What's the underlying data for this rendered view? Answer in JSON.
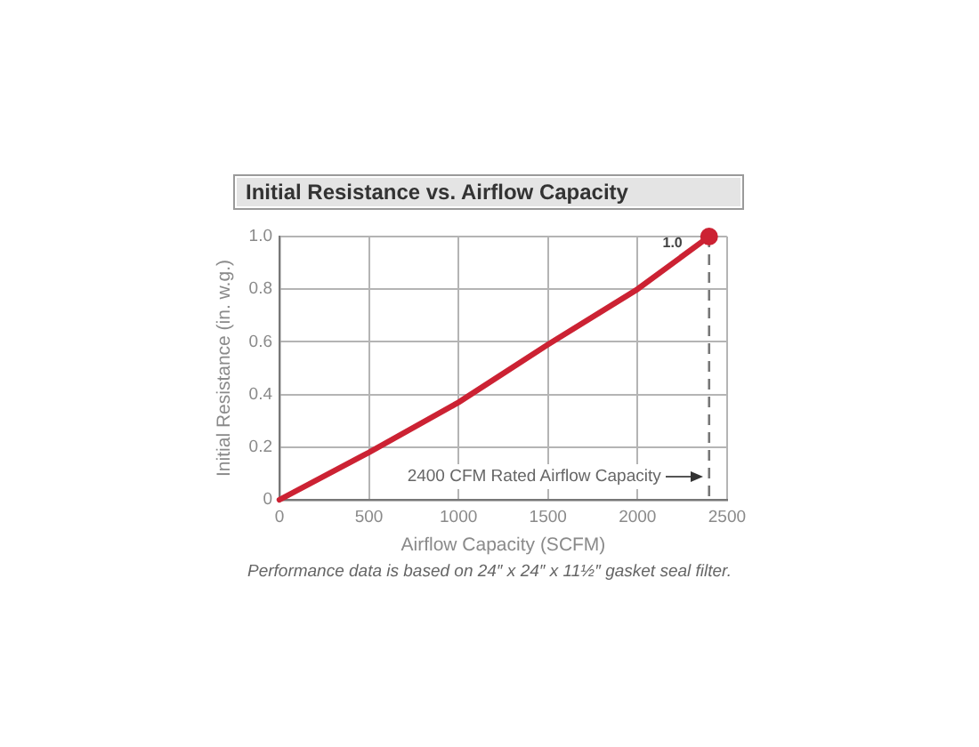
{
  "chart_data": {
    "type": "line",
    "title": "Initial Resistance vs. Airflow Capacity",
    "xlabel": "Airflow Capacity (SCFM)",
    "ylabel": "Initial Resistance (in. w.g.)",
    "series": [
      {
        "type": "line",
        "color": "#cc2233",
        "x": [
          0,
          500,
          1000,
          1500,
          2000,
          2400
        ],
        "values": [
          0,
          0.18,
          0.37,
          0.59,
          0.8,
          1.0
        ]
      },
      {
        "type": "scatter",
        "color": "#cc2233",
        "marker": "circle",
        "x": [
          2400
        ],
        "values": [
          1.0
        ],
        "value_labels": [
          "1.0"
        ]
      }
    ],
    "xlim": [
      0,
      2500
    ],
    "xticks": [
      0,
      500,
      1000,
      1500,
      2000,
      2500
    ],
    "ylim": [
      0,
      1.0
    ],
    "yticks": [
      0,
      {
        "value": 0.2,
        "label": "0.2"
      },
      {
        "value": 0.4,
        "label": "0.4"
      },
      {
        "value": 0.6,
        "label": "0.6"
      },
      {
        "value": 0.8,
        "label": "0.8"
      },
      {
        "value": 1.0,
        "label": "1.0"
      }
    ],
    "grid": true,
    "marker": "none",
    "ref_lines": [
      {
        "axis": "x",
        "value": 2400,
        "label": "2400 CFM Rated Airflow Capacity",
        "color": "#777777",
        "line_style": "dashed"
      }
    ],
    "annotations": [
      "Performance data is based on 24″ x 24″ x 11½″ gasket seal filter."
    ]
  }
}
